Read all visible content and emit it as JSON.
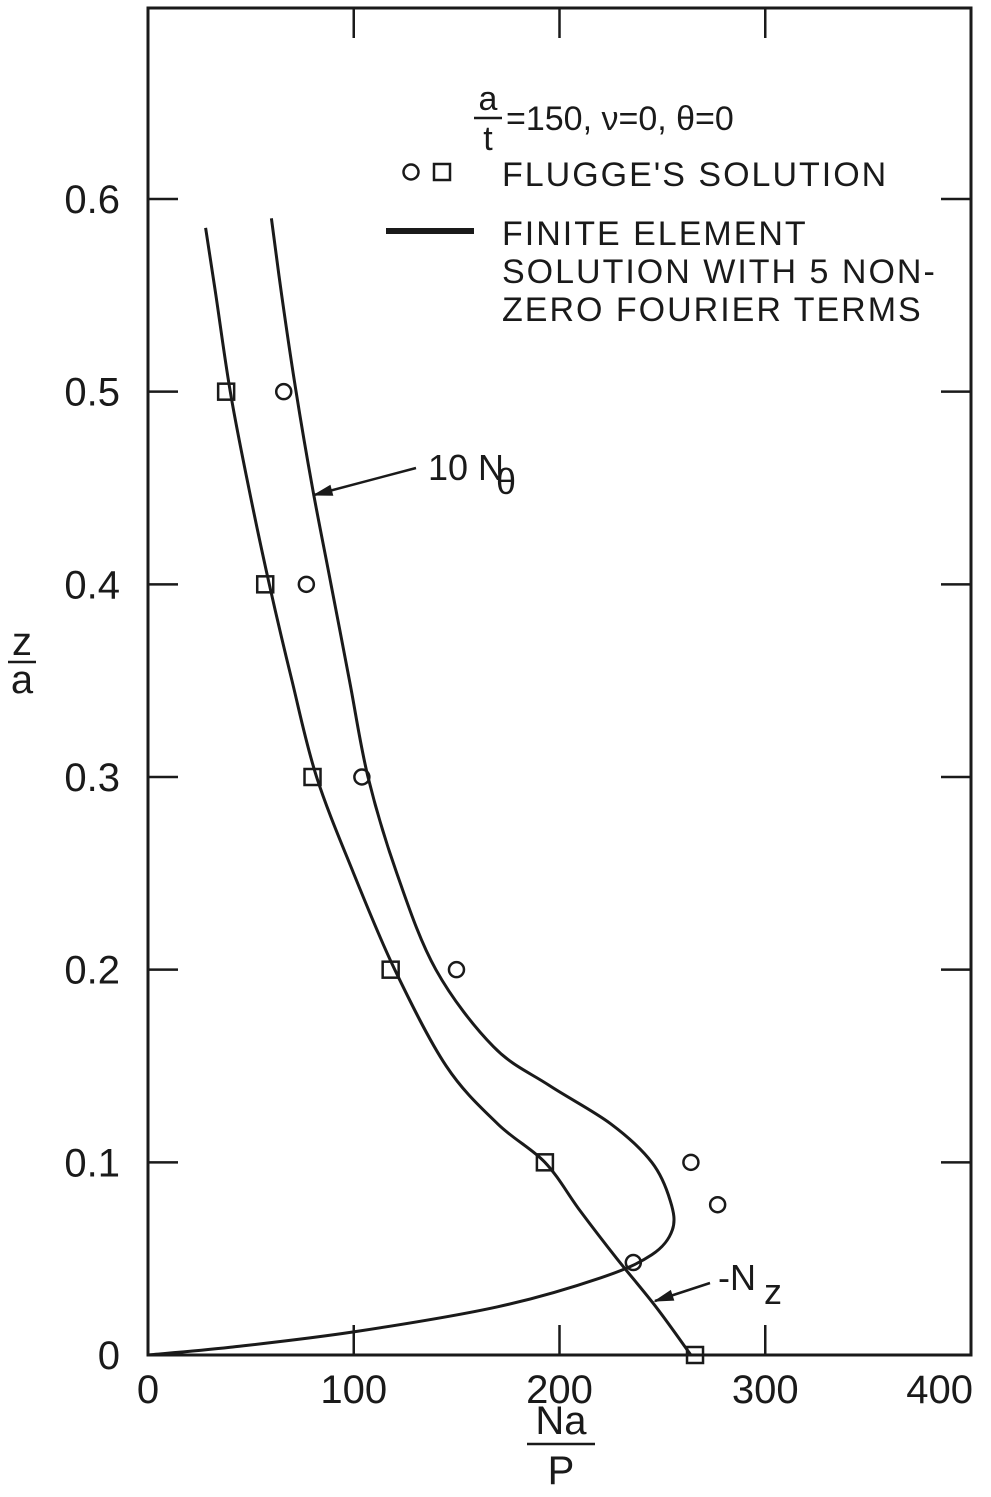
{
  "chart_data": {
    "type": "scatter",
    "header": {
      "ratio_numerator": "a",
      "ratio_denominator": "t",
      "conditions": "=150,  ν=0,  θ=0"
    },
    "xlabel": {
      "numerator": "Na",
      "denominator": "P"
    },
    "ylabel": {
      "numerator": "z",
      "denominator": "a"
    },
    "xlim": [
      0,
      400
    ],
    "ylim": [
      0,
      0.7
    ],
    "x_ticks": [
      "0",
      "100",
      "200",
      "300",
      "400"
    ],
    "y_ticks": [
      "0",
      "0.1",
      "0.2",
      "0.3",
      "0.4",
      "0.5",
      "0.6"
    ],
    "grid": false,
    "legend": {
      "placement": "top-right",
      "markers_label": "FLUGGE'S SOLUTION",
      "line_label_lines": [
        "FINITE ELEMENT",
        "SOLUTION WITH 5 NON-",
        "ZERO FOURIER TERMS"
      ]
    },
    "series": [
      {
        "name": "10 Nθ",
        "kind": "line",
        "points": [
          [
            60,
            0.59
          ],
          [
            65,
            0.55
          ],
          [
            72,
            0.5
          ],
          [
            80,
            0.45
          ],
          [
            89,
            0.4
          ],
          [
            98,
            0.35
          ],
          [
            107,
            0.3
          ],
          [
            121,
            0.25
          ],
          [
            140,
            0.2
          ],
          [
            168,
            0.16
          ],
          [
            195,
            0.14
          ],
          [
            225,
            0.12
          ],
          [
            245,
            0.1
          ],
          [
            254,
            0.08
          ],
          [
            255,
            0.065
          ],
          [
            245,
            0.052
          ],
          [
            220,
            0.04
          ],
          [
            170,
            0.025
          ],
          [
            100,
            0.012
          ],
          [
            40,
            0.004
          ],
          [
            0,
            0
          ]
        ],
        "callout": "10 N",
        "callout_sub": "θ"
      },
      {
        "name": "-Nz",
        "kind": "line",
        "points": [
          [
            28,
            0.585
          ],
          [
            33,
            0.55
          ],
          [
            40,
            0.5
          ],
          [
            49,
            0.45
          ],
          [
            59,
            0.4
          ],
          [
            70,
            0.35
          ],
          [
            82,
            0.3
          ],
          [
            100,
            0.25
          ],
          [
            120,
            0.2
          ],
          [
            145,
            0.15
          ],
          [
            170,
            0.12
          ],
          [
            193,
            0.1
          ],
          [
            210,
            0.075
          ],
          [
            228,
            0.05
          ],
          [
            247,
            0.025
          ],
          [
            264,
            0
          ]
        ],
        "callout": "-N",
        "callout_sub": "z"
      },
      {
        "name": "Flugge circles",
        "kind": "markers",
        "marker": "circle",
        "points": [
          [
            66,
            0.5
          ],
          [
            77,
            0.4
          ],
          [
            104,
            0.3
          ],
          [
            150,
            0.2
          ],
          [
            264,
            0.1
          ],
          [
            277,
            0.078
          ],
          [
            236,
            0.048
          ]
        ]
      },
      {
        "name": "Flugge squares",
        "kind": "markers",
        "marker": "square",
        "points": [
          [
            38,
            0.5
          ],
          [
            57,
            0.4
          ],
          [
            80,
            0.3
          ],
          [
            118,
            0.2
          ],
          [
            193,
            0.1
          ],
          [
            266,
            0
          ]
        ]
      }
    ]
  }
}
